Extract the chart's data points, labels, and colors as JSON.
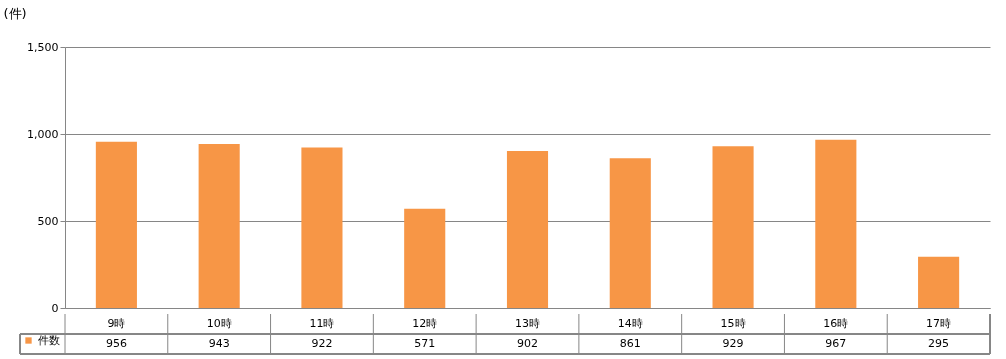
{
  "chart_data": {
    "type": "bar",
    "ylabel": "(件)",
    "categories": [
      "9時",
      "10時",
      "11時",
      "12時",
      "13時",
      "14時",
      "15時",
      "16時",
      "17時"
    ],
    "series": [
      {
        "name": "件数",
        "color": "#f79646",
        "values": [
          956,
          943,
          922,
          571,
          902,
          861,
          929,
          967,
          295
        ]
      }
    ],
    "ylim": [
      0,
      1500
    ],
    "yticks": [
      0,
      500,
      {
        "value": 1000,
        "label": "1,000"
      },
      {
        "value": 1500,
        "label": "1,500"
      }
    ],
    "grid": "y",
    "legend": "bottom",
    "data_labels": true
  }
}
